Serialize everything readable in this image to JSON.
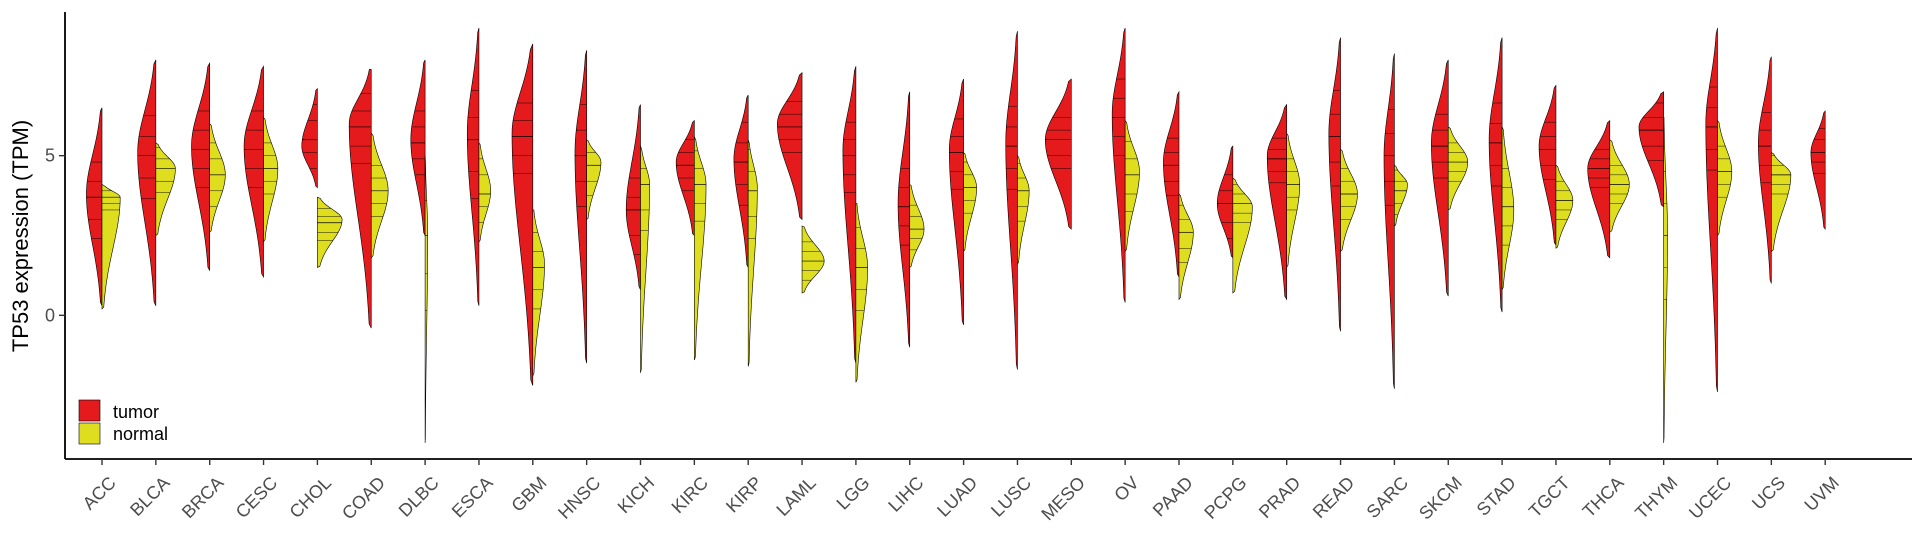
{
  "chart_data": {
    "type": "violin",
    "ylabel": "TP53 expression (TPM)",
    "xlabel": "",
    "ylim": [
      -4.5,
      9.5
    ],
    "yticks": [
      0,
      5
    ],
    "grid": false,
    "legend_position": "bottom-left inside",
    "categories": [
      "ACC",
      "BLCA",
      "BRCA",
      "CESC",
      "CHOL",
      "COAD",
      "DLBC",
      "ESCA",
      "GBM",
      "HNSC",
      "KICH",
      "KIRC",
      "KIRP",
      "LAML",
      "LGG",
      "LIHC",
      "LUAD",
      "LUSC",
      "MESO",
      "OV",
      "PAAD",
      "PCPG",
      "PRAD",
      "READ",
      "SARC",
      "SKCM",
      "STAD",
      "TGCT",
      "THCA",
      "THYM",
      "UCEC",
      "UCS",
      "UVM"
    ],
    "series": [
      {
        "name": "tumor",
        "color": "#e41a1c",
        "side": "left",
        "violins": [
          {
            "min": 0.3,
            "max": 6.5,
            "q1": 3.0,
            "median": 3.7,
            "q3": 4.2,
            "mode": 3.8,
            "width": 0.6
          },
          {
            "min": 0.3,
            "max": 8.0,
            "q1": 4.3,
            "median": 5.0,
            "q3": 5.6,
            "mode": 5.1,
            "width": 0.7
          },
          {
            "min": 1.4,
            "max": 7.9,
            "q1": 4.6,
            "median": 5.2,
            "q3": 5.8,
            "mode": 5.3,
            "width": 0.7
          },
          {
            "min": 1.2,
            "max": 7.8,
            "q1": 4.6,
            "median": 5.2,
            "q3": 5.8,
            "mode": 5.3,
            "width": 0.75
          },
          {
            "min": 4.0,
            "max": 7.1,
            "q1": 5.1,
            "median": 5.5,
            "q3": 6.1,
            "mode": 5.3,
            "width": 0.6
          },
          {
            "min": -0.4,
            "max": 7.7,
            "q1": 5.3,
            "median": 5.9,
            "q3": 6.4,
            "mode": 6.0,
            "width": 0.85
          },
          {
            "min": 2.5,
            "max": 8.0,
            "q1": 4.9,
            "median": 5.4,
            "q3": 5.9,
            "mode": 5.5,
            "width": 0.55
          },
          {
            "min": 0.3,
            "max": 9.0,
            "q1": 4.5,
            "median": 5.5,
            "q3": 6.2,
            "mode": 5.7,
            "width": 0.45
          },
          {
            "min": -2.2,
            "max": 8.5,
            "q1": 5.0,
            "median": 5.6,
            "q3": 6.1,
            "mode": 5.7,
            "width": 0.8
          },
          {
            "min": -1.5,
            "max": 8.3,
            "q1": 4.2,
            "median": 5.0,
            "q3": 5.8,
            "mode": 5.1,
            "width": 0.45
          },
          {
            "min": 0.8,
            "max": 6.6,
            "q1": 2.5,
            "median": 3.3,
            "q3": 3.7,
            "mode": 3.3,
            "width": 0.55
          },
          {
            "min": 2.5,
            "max": 6.1,
            "q1": 4.3,
            "median": 4.7,
            "q3": 5.1,
            "mode": 4.8,
            "width": 0.7
          },
          {
            "min": 1.5,
            "max": 6.9,
            "q1": 4.1,
            "median": 4.8,
            "q3": 5.4,
            "mode": 4.9,
            "width": 0.55
          },
          {
            "min": 3.0,
            "max": 7.6,
            "q1": 5.5,
            "median": 5.9,
            "q3": 6.3,
            "mode": 6.0,
            "width": 0.95
          },
          {
            "min": -1.5,
            "max": 7.8,
            "q1": 4.4,
            "median": 5.0,
            "q3": 5.5,
            "mode": 5.2,
            "width": 0.5
          },
          {
            "min": -1.0,
            "max": 7.0,
            "q1": 2.8,
            "median": 3.4,
            "q3": 4.0,
            "mode": 3.5,
            "width": 0.45
          },
          {
            "min": -0.3,
            "max": 7.4,
            "q1": 4.5,
            "median": 5.1,
            "q3": 5.6,
            "mode": 5.2,
            "width": 0.55
          },
          {
            "min": -1.7,
            "max": 8.9,
            "q1": 4.6,
            "median": 5.3,
            "q3": 5.9,
            "mode": 5.4,
            "width": 0.45
          },
          {
            "min": 2.7,
            "max": 7.4,
            "q1": 5.0,
            "median": 5.5,
            "q3": 5.8,
            "mode": 5.5,
            "width": 1.0
          },
          {
            "min": 0.4,
            "max": 9.0,
            "q1": 5.6,
            "median": 6.2,
            "q3": 6.8,
            "mode": 6.3,
            "width": 0.5
          },
          {
            "min": 1.2,
            "max": 7.0,
            "q1": 4.2,
            "median": 4.7,
            "q3": 5.1,
            "mode": 4.8,
            "width": 0.6
          },
          {
            "min": 1.8,
            "max": 5.3,
            "q1": 2.9,
            "median": 3.5,
            "q3": 3.9,
            "mode": 3.5,
            "width": 0.6
          },
          {
            "min": 0.5,
            "max": 6.6,
            "q1": 4.5,
            "median": 4.9,
            "q3": 5.2,
            "mode": 5.0,
            "width": 0.75
          },
          {
            "min": -0.5,
            "max": 8.7,
            "q1": 4.8,
            "median": 5.6,
            "q3": 6.3,
            "mode": 5.7,
            "width": 0.45
          },
          {
            "min": -2.3,
            "max": 8.2,
            "q1": 4.2,
            "median": 5.0,
            "q3": 5.7,
            "mode": 5.0,
            "width": 0.4
          },
          {
            "min": 0.6,
            "max": 8.0,
            "q1": 4.8,
            "median": 5.3,
            "q3": 5.8,
            "mode": 5.4,
            "width": 0.65
          },
          {
            "min": 0.1,
            "max": 8.7,
            "q1": 4.7,
            "median": 5.4,
            "q3": 6.0,
            "mode": 5.5,
            "width": 0.5
          },
          {
            "min": 2.2,
            "max": 7.2,
            "q1": 4.7,
            "median": 5.2,
            "q3": 5.6,
            "mode": 5.3,
            "width": 0.65
          },
          {
            "min": 1.8,
            "max": 6.1,
            "q1": 4.3,
            "median": 4.6,
            "q3": 4.9,
            "mode": 4.6,
            "width": 0.85
          },
          {
            "min": 3.4,
            "max": 7.0,
            "q1": 5.3,
            "median": 5.8,
            "q3": 6.2,
            "mode": 5.9,
            "width": 0.95
          },
          {
            "min": -2.4,
            "max": 9.0,
            "q1": 5.2,
            "median": 5.9,
            "q3": 6.5,
            "mode": 6.0,
            "width": 0.45
          },
          {
            "min": 1.0,
            "max": 8.1,
            "q1": 4.7,
            "median": 5.3,
            "q3": 5.8,
            "mode": 5.4,
            "width": 0.5
          },
          {
            "min": 2.7,
            "max": 6.4,
            "q1": 4.8,
            "median": 5.1,
            "q3": 5.5,
            "mode": 5.1,
            "width": 0.55
          }
        ]
      },
      {
        "name": "normal",
        "color": "#dede1e",
        "side": "right",
        "violins": [
          {
            "min": 0.2,
            "max": 4.1,
            "q1": 3.5,
            "median": 3.7,
            "q3": 3.9,
            "mode": 3.7,
            "width": 0.7
          },
          {
            "min": 2.5,
            "max": 5.4,
            "q1": 4.2,
            "median": 4.6,
            "q3": 4.9,
            "mode": 4.6,
            "width": 0.75
          },
          {
            "min": 2.6,
            "max": 6.0,
            "q1": 3.9,
            "median": 4.4,
            "q3": 4.9,
            "mode": 4.4,
            "width": 0.6
          },
          {
            "min": 2.3,
            "max": 6.2,
            "q1": 4.2,
            "median": 4.6,
            "q3": 5.0,
            "mode": 4.6,
            "width": 0.55
          },
          {
            "min": 1.5,
            "max": 3.7,
            "q1": 2.6,
            "median": 2.9,
            "q3": 3.1,
            "mode": 3.0,
            "width": 0.95
          },
          {
            "min": 1.8,
            "max": 5.7,
            "q1": 3.5,
            "median": 3.9,
            "q3": 4.3,
            "mode": 3.9,
            "width": 0.65
          },
          {
            "min": -4.0,
            "max": 5.0,
            "q1": 1.3,
            "median": 2.5,
            "q3": 3.6,
            "mode": 2.5,
            "width": 0.1
          },
          {
            "min": 2.3,
            "max": 5.4,
            "q1": 3.4,
            "median": 3.8,
            "q3": 4.4,
            "mode": 3.9,
            "width": 0.45
          },
          {
            "min": -1.9,
            "max": 3.3,
            "q1": 0.8,
            "median": 1.5,
            "q3": 2.0,
            "mode": 1.6,
            "width": 0.45
          },
          {
            "min": 3.0,
            "max": 5.5,
            "q1": 4.2,
            "median": 4.7,
            "q3": 5.1,
            "mode": 4.8,
            "width": 0.55
          },
          {
            "min": -1.8,
            "max": 5.3,
            "q1": 3.3,
            "median": 4.1,
            "q3": 4.6,
            "mode": 4.1,
            "width": 0.35
          },
          {
            "min": -1.4,
            "max": 5.6,
            "q1": 3.5,
            "median": 4.1,
            "q3": 4.6,
            "mode": 4.1,
            "width": 0.45
          },
          {
            "min": -1.6,
            "max": 5.5,
            "q1": 3.1,
            "median": 3.9,
            "q3": 4.5,
            "mode": 4.0,
            "width": 0.35
          },
          {
            "min": 0.7,
            "max": 2.8,
            "q1": 1.4,
            "median": 1.7,
            "q3": 2.0,
            "mode": 1.7,
            "width": 0.85
          },
          {
            "min": -2.1,
            "max": 3.5,
            "q1": 0.8,
            "median": 1.5,
            "q3": 2.1,
            "mode": 1.5,
            "width": 0.45
          },
          {
            "min": 1.5,
            "max": 4.1,
            "q1": 2.4,
            "median": 2.7,
            "q3": 3.1,
            "mode": 2.7,
            "width": 0.55
          },
          {
            "min": 2.0,
            "max": 5.1,
            "q1": 3.6,
            "median": 4.0,
            "q3": 4.4,
            "mode": 4.0,
            "width": 0.5
          },
          {
            "min": 1.6,
            "max": 5.0,
            "q1": 3.4,
            "median": 3.9,
            "q3": 4.3,
            "mode": 3.9,
            "width": 0.45
          },
          null,
          {
            "min": 2.0,
            "max": 6.1,
            "q1": 3.8,
            "median": 4.4,
            "q3": 4.9,
            "mode": 4.5,
            "width": 0.55
          },
          {
            "min": 0.5,
            "max": 3.8,
            "q1": 2.1,
            "median": 2.6,
            "q3": 3.0,
            "mode": 2.6,
            "width": 0.55
          },
          {
            "min": 0.7,
            "max": 4.3,
            "q1": 3.2,
            "median": 3.5,
            "q3": 3.8,
            "mode": 3.4,
            "width": 0.75
          },
          {
            "min": 1.5,
            "max": 5.7,
            "q1": 3.7,
            "median": 4.1,
            "q3": 4.5,
            "mode": 4.1,
            "width": 0.5
          },
          {
            "min": 2.0,
            "max": 5.2,
            "q1": 3.4,
            "median": 3.8,
            "q3": 4.2,
            "mode": 3.8,
            "width": 0.65
          },
          {
            "min": 2.8,
            "max": 4.7,
            "q1": 3.5,
            "median": 3.9,
            "q3": 4.2,
            "mode": 4.1,
            "width": 0.5
          },
          {
            "min": 3.3,
            "max": 5.9,
            "q1": 4.5,
            "median": 4.8,
            "q3": 5.1,
            "mode": 4.8,
            "width": 0.75
          },
          {
            "min": 0.8,
            "max": 5.9,
            "q1": 2.8,
            "median": 3.4,
            "q3": 4.0,
            "mode": 3.3,
            "width": 0.45
          },
          {
            "min": 2.1,
            "max": 4.7,
            "q1": 3.3,
            "median": 3.6,
            "q3": 3.9,
            "mode": 3.6,
            "width": 0.65
          },
          {
            "min": 2.6,
            "max": 5.5,
            "q1": 3.8,
            "median": 4.1,
            "q3": 4.4,
            "mode": 4.1,
            "width": 0.75
          },
          {
            "min": -4.0,
            "max": 6.2,
            "q1": 1.5,
            "median": 2.5,
            "q3": 3.5,
            "mode": 2.5,
            "width": 0.15
          },
          {
            "min": 2.5,
            "max": 6.1,
            "q1": 4.1,
            "median": 4.5,
            "q3": 4.9,
            "mode": 4.5,
            "width": 0.55
          },
          {
            "min": 2.0,
            "max": 5.1,
            "q1": 4.1,
            "median": 4.4,
            "q3": 4.7,
            "mode": 4.4,
            "width": 0.75
          },
          null
        ]
      }
    ]
  }
}
